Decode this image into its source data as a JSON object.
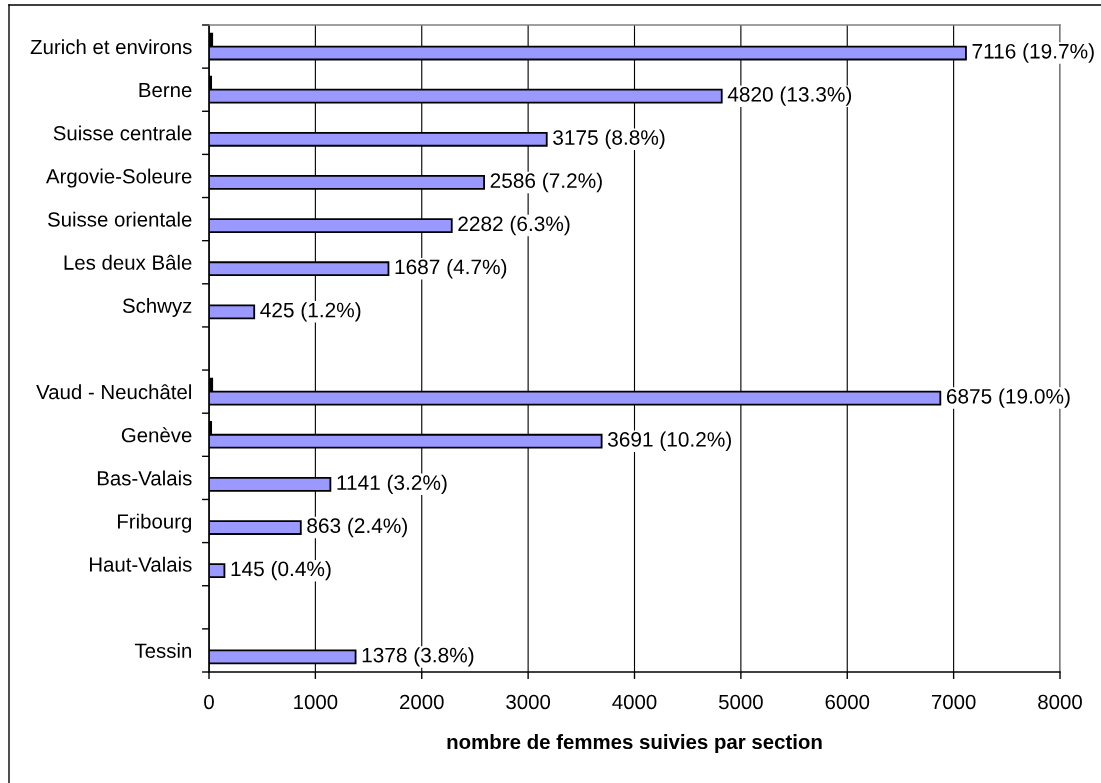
{
  "chart_data": {
    "type": "bar",
    "orientation": "horizontal",
    "categories": [
      "Zurich et environs",
      "Berne",
      "Suisse centrale",
      "Argovie-Soleure",
      "Suisse orientale",
      "Les deux Bâle",
      "Schwyz",
      null,
      "Vaud - Neuchâtel",
      "Genève",
      "Bas-Valais",
      "Fribourg",
      "Haut-Valais",
      null,
      "Tessin"
    ],
    "series": [
      {
        "color": "#000000",
        "values": [
          30,
          20,
          null,
          null,
          null,
          null,
          null,
          null,
          30,
          20,
          null,
          null,
          null,
          null,
          null
        ]
      },
      {
        "color": "#9999ff",
        "values": [
          7116,
          4820,
          3175,
          2586,
          2282,
          1687,
          425,
          null,
          6875,
          3691,
          1141,
          863,
          145,
          null,
          1378
        ],
        "value_labels": [
          "7116 (19.7%)",
          "4820 (13.3%)",
          "3175 (8.8%)",
          "2586 (7.2%)",
          "2282 (6.3%)",
          "1687 (4.7%)",
          "425 (1.2%)",
          null,
          "6875 (19.0%)",
          "3691 (10.2%)",
          "1141 (3.2%)",
          "863 (2.4%)",
          "145 (0.4%)",
          null,
          "1378 (3.8%)"
        ]
      }
    ],
    "xlim": [
      0,
      8000
    ],
    "xticks": [
      0,
      1000,
      2000,
      3000,
      4000,
      5000,
      6000,
      7000,
      8000
    ],
    "xlabel": "nombre de femmes suivies par section",
    "grid": "x"
  }
}
